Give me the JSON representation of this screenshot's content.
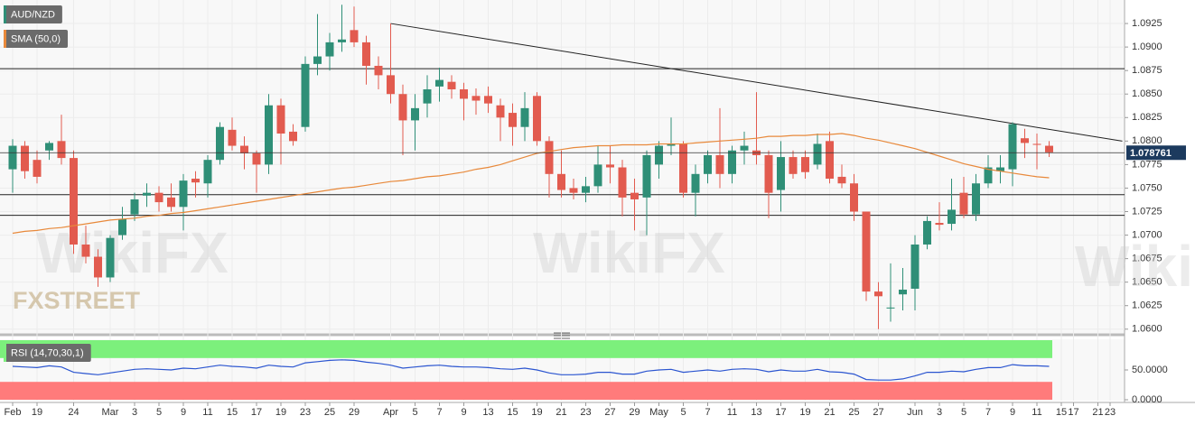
{
  "chart_data": [
    {
      "type": "candlestick",
      "categories": [
        "Feb",
        null,
        "19",
        null,
        null,
        "24",
        null,
        null,
        "Mar",
        null,
        "3",
        null,
        "5",
        null,
        "9",
        null,
        "11",
        null,
        "15",
        null,
        "17",
        null,
        "19",
        null,
        "23",
        null,
        "25",
        null,
        "29",
        null,
        null,
        "Apr",
        null,
        "5",
        null,
        "7",
        null,
        "9",
        null,
        "13",
        null,
        "15",
        null,
        "19",
        null,
        "21",
        null,
        "23",
        null,
        "27",
        null,
        "29",
        null,
        "May",
        null,
        "5",
        null,
        "7",
        null,
        "11",
        null,
        "13",
        null,
        "17",
        null,
        "19",
        null,
        "21",
        null,
        "25",
        null,
        "27",
        null,
        null,
        "Jun",
        null,
        "3",
        null,
        "5",
        null,
        "7",
        null,
        "9",
        null,
        "11",
        null,
        "15",
        "17",
        null,
        "21",
        "23"
      ],
      "series": [
        {
          "name": "AUD/NZD",
          "up_color": "#2f8f77",
          "down_color": "#e25b4f",
          "open": [
            1.077,
            1.0795,
            1.078,
            1.079,
            1.08,
            1.0782,
            1.069,
            1.0677,
            1.0655,
            1.07,
            1.0722,
            1.0742,
            1.0745,
            1.074,
            1.073,
            1.076,
            1.0755,
            1.078,
            1.0812,
            1.0795,
            1.0787,
            1.0775,
            1.0838,
            1.081,
            1.0815,
            1.0882,
            1.089,
            1.0905,
            1.0918,
            1.0905,
            1.088,
            1.087,
            1.085,
            1.0822,
            1.084,
            1.0858,
            1.0863,
            1.0855,
            1.0848,
            1.0848,
            1.0838,
            1.083,
            1.0815,
            1.0848,
            1.08,
            1.0765,
            1.075,
            1.0745,
            1.0752,
            1.0775,
            1.0772,
            1.0745,
            1.074,
            1.0775,
            1.0795,
            1.0797,
            1.0745,
            1.0765,
            1.0785,
            1.0765,
            1.079,
            1.079,
            1.0785,
            1.0748,
            1.0783,
            1.0783,
            1.0775,
            1.08,
            1.0762,
            1.0755,
            1.0725,
            1.064,
            1.0622,
            1.0637,
            1.0643,
            1.069,
            1.0713,
            1.0712,
            1.0745,
            1.0722,
            1.0755,
            1.0768,
            1.077,
            1.0803,
            1.0797,
            1.0795,
            null,
            null,
            null,
            null,
            null
          ],
          "high": [
            1.0802,
            1.08,
            1.079,
            1.08,
            1.0828,
            1.079,
            1.071,
            1.0685,
            1.07,
            1.073,
            1.0745,
            1.0755,
            1.0752,
            1.0755,
            1.0765,
            1.0768,
            1.0785,
            1.082,
            1.0825,
            1.0805,
            1.079,
            1.085,
            1.0845,
            1.0818,
            1.089,
            1.0935,
            1.0915,
            1.0945,
            1.0943,
            1.0912,
            1.089,
            1.0925,
            1.086,
            1.085,
            1.087,
            1.0878,
            1.087,
            1.0862,
            1.0856,
            1.0858,
            1.0845,
            1.084,
            1.0852,
            1.0852,
            1.0805,
            1.079,
            1.076,
            1.0762,
            1.0795,
            1.0795,
            1.078,
            1.076,
            1.079,
            1.08,
            1.0825,
            1.08,
            1.0775,
            1.079,
            1.0835,
            1.0795,
            1.081,
            1.0852,
            1.079,
            1.08,
            1.079,
            1.079,
            1.0808,
            1.081,
            1.0775,
            1.0765,
            1.0725,
            1.065,
            1.067,
            1.0665,
            1.07,
            1.072,
            1.0735,
            1.076,
            1.0762,
            1.0765,
            1.0785,
            1.0785,
            1.082,
            1.0813,
            1.0808,
            1.08,
            null,
            null,
            null,
            null,
            null
          ],
          "low": [
            1.0745,
            1.076,
            1.0755,
            1.078,
            1.0775,
            1.068,
            1.067,
            1.0645,
            1.065,
            1.0695,
            1.0715,
            1.073,
            1.0725,
            1.0725,
            1.0705,
            1.074,
            1.074,
            1.0775,
            1.079,
            1.077,
            1.0745,
            1.0765,
            1.0775,
            1.0795,
            1.081,
            1.087,
            1.0875,
            1.0895,
            1.09,
            1.086,
            1.0855,
            1.084,
            1.0785,
            1.079,
            1.0825,
            1.0842,
            1.0845,
            1.0822,
            1.0828,
            1.083,
            1.08,
            1.0795,
            1.08,
            1.0795,
            1.074,
            1.074,
            1.0738,
            1.0735,
            1.0745,
            1.0755,
            1.072,
            1.0705,
            1.07,
            1.076,
            1.0785,
            1.074,
            1.072,
            1.0755,
            1.075,
            1.0755,
            1.0775,
            1.0775,
            1.0718,
            1.0725,
            1.076,
            1.076,
            1.077,
            1.0755,
            1.075,
            1.0715,
            1.063,
            1.06,
            1.0608,
            1.062,
            1.062,
            1.0685,
            1.0705,
            1.0705,
            1.0718,
            1.0715,
            1.075,
            1.0755,
            1.0752,
            1.0782,
            1.077,
            1.0783,
            null,
            null,
            null,
            null,
            null
          ],
          "close": [
            1.0795,
            1.0768,
            1.0762,
            1.0798,
            1.0782,
            1.069,
            1.0677,
            1.0655,
            1.0697,
            1.0717,
            1.0738,
            1.0745,
            1.0735,
            1.073,
            1.0758,
            1.0756,
            1.078,
            1.0815,
            1.0795,
            1.0787,
            1.0775,
            1.0838,
            1.0808,
            1.08,
            1.0882,
            1.089,
            1.0905,
            1.0908,
            1.0905,
            1.088,
            1.087,
            1.085,
            1.0822,
            1.0835,
            1.0855,
            1.0865,
            1.0855,
            1.0845,
            1.0843,
            1.084,
            1.0825,
            1.0815,
            1.0835,
            1.08,
            1.0765,
            1.0748,
            1.0745,
            1.0752,
            1.0775,
            1.0772,
            1.074,
            1.0738,
            1.0785,
            1.0795,
            1.0797,
            1.0745,
            1.0765,
            1.0785,
            1.0765,
            1.079,
            1.0795,
            1.0785,
            1.0745,
            1.0783,
            1.0765,
            1.0767,
            1.0797,
            1.076,
            1.0755,
            1.0725,
            1.064,
            1.0635,
            1.0623,
            1.0642,
            1.069,
            1.0715,
            1.0711,
            1.0727,
            1.0722,
            1.0755,
            1.0772,
            1.0772,
            1.0818,
            1.0798,
            1.0796,
            1.0788,
            null,
            null,
            null,
            null,
            null
          ]
        },
        {
          "name": "SMA (50,0)",
          "color": "#e8893b",
          "values": [
            1.0702,
            1.0704,
            1.0705,
            1.0707,
            1.0708,
            1.071,
            1.0712,
            1.0714,
            1.0716,
            1.0717,
            1.0718,
            1.072,
            1.0721,
            1.0723,
            1.0724,
            1.0726,
            1.0728,
            1.073,
            1.0732,
            1.0734,
            1.0736,
            1.0738,
            1.074,
            1.0742,
            1.0744,
            1.0746,
            1.0748,
            1.075,
            1.0751,
            1.0753,
            1.0755,
            1.0757,
            1.0758,
            1.076,
            1.0762,
            1.0763,
            1.0765,
            1.0767,
            1.077,
            1.0772,
            1.0775,
            1.0779,
            1.0783,
            1.0787,
            1.0789,
            1.0791,
            1.0793,
            1.0794,
            1.0795,
            1.0795,
            1.0796,
            1.0796,
            1.0796,
            1.0797,
            1.0797,
            1.0797,
            1.0798,
            1.0799,
            1.08,
            1.0801,
            1.0802,
            1.0803,
            1.0805,
            1.0805,
            1.0806,
            1.0806,
            1.0807,
            1.0807,
            1.0808,
            1.0806,
            1.0803,
            1.0801,
            1.0798,
            1.0795,
            1.0792,
            1.0788,
            1.0784,
            1.078,
            1.0776,
            1.0773,
            1.077,
            1.0768,
            1.0766,
            1.0764,
            1.0762,
            1.0761,
            null,
            null,
            null,
            null,
            null
          ]
        }
      ],
      "ylim": [
        1.0595,
        1.095
      ],
      "yticks": [
        1.0925,
        {
          "value": 1.09,
          "label": "1.0900"
        },
        1.0875,
        {
          "value": 1.085,
          "label": "1.0850"
        },
        1.0825,
        {
          "value": 1.08,
          "label": "1.0800"
        },
        1.0775,
        {
          "value": 1.075,
          "label": "1.0750"
        },
        1.0725,
        {
          "value": 1.07,
          "label": "1.0700"
        },
        1.0675,
        {
          "value": 1.065,
          "label": "1.0650"
        },
        1.0625,
        {
          "value": 1.06,
          "label": "1.0600"
        }
      ],
      "grid": true,
      "hlines": [
        1.0877,
        1.0743,
        1.0721
      ],
      "trendline": {
        "x": [
          31,
          91
        ],
        "y": [
          1.0925,
          1.08
        ]
      },
      "last_price": 1.078761,
      "watermark": "WikiFX",
      "brand": "FXSTREET"
    },
    {
      "type": "line",
      "series": [
        {
          "name": "RSI (14,70,30,1)",
          "color": "#2b55d0",
          "values": [
            56,
            55,
            54,
            57,
            55,
            46,
            44,
            42,
            45,
            48,
            51,
            52,
            51,
            50,
            53,
            52,
            55,
            58,
            56,
            55,
            53,
            58,
            56,
            55,
            62,
            64,
            66,
            67,
            66,
            63,
            61,
            58,
            53,
            55,
            57,
            58,
            56,
            55,
            55,
            54,
            52,
            51,
            53,
            50,
            45,
            42,
            42,
            43,
            46,
            46,
            43,
            43,
            48,
            50,
            51,
            46,
            48,
            50,
            48,
            51,
            52,
            51,
            47,
            50,
            48,
            48,
            51,
            47,
            46,
            43,
            34,
            33,
            33,
            35,
            40,
            46,
            46,
            48,
            47,
            51,
            54,
            54,
            59,
            57,
            57,
            56,
            null,
            null,
            null,
            null,
            null
          ]
        }
      ],
      "ylim": [
        0,
        100
      ],
      "yticks": [
        {
          "value": 0,
          "label": "0.0000"
        },
        {
          "value": 50,
          "label": "50.0000"
        }
      ],
      "overbought": 70,
      "oversold": 30,
      "overbought_color": "#7cf07c",
      "oversold_color": "#ff7b7b"
    }
  ]
}
